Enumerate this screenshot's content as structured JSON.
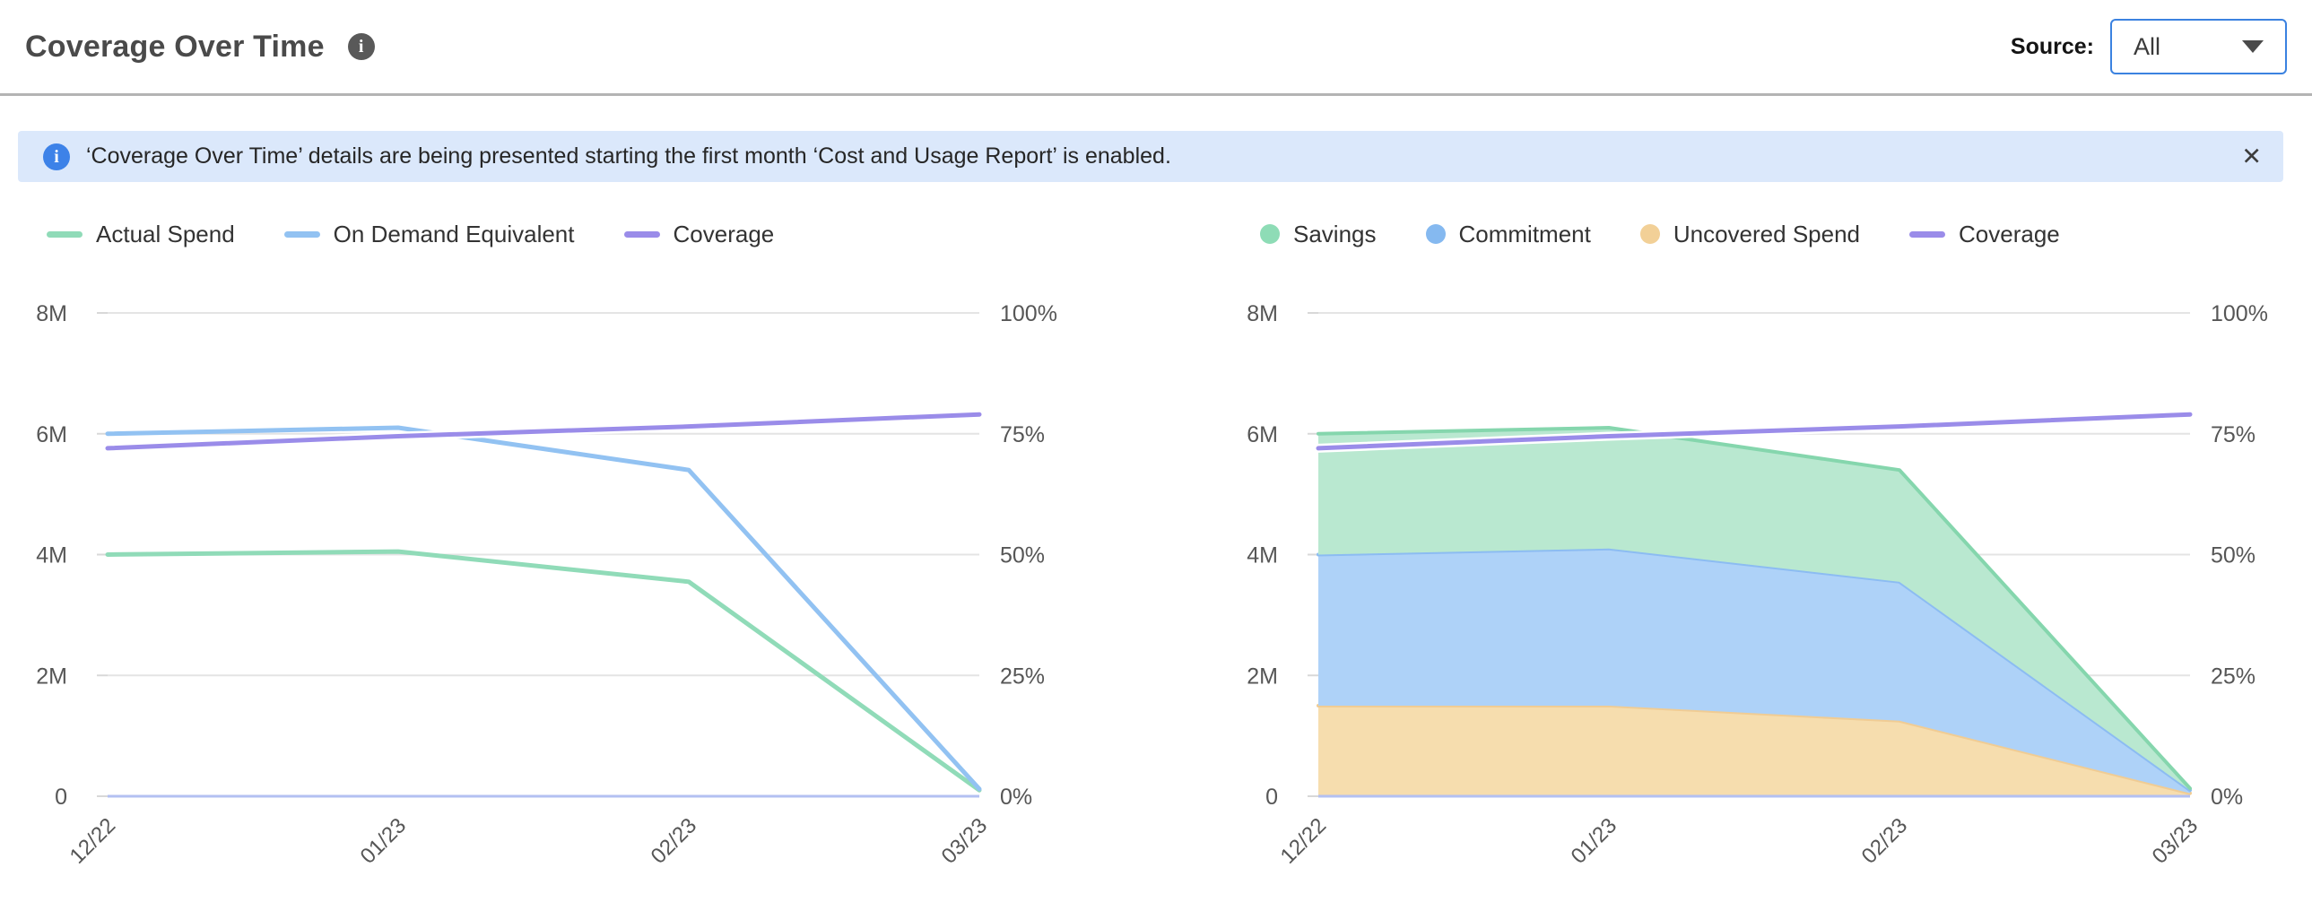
{
  "header": {
    "title": "Coverage Over Time",
    "info_icon": "i",
    "source_label": "Source:",
    "source_value": "All"
  },
  "banner": {
    "info_icon": "i",
    "text": "‘Coverage Over Time’ details are being presented starting the first month ‘Cost and Usage Report’ is enabled.",
    "close_icon": "✕"
  },
  "colors": {
    "actual_spend": "#90dbb8",
    "on_demand": "#92c2f2",
    "coverage": "#9a8ce9",
    "savings_dot": "#8edcb6",
    "commitment_dot": "#85b9f0",
    "uncovered_dot": "#f2d097",
    "grid": "#e4e4e4",
    "zero_axis": "#b3c0f2",
    "tick": "#d8d8d8",
    "axis_label": "#565656",
    "banner_bg": "#dbe8fb",
    "banner_icon_blue": "#3d82e8",
    "dropdown_border": "#3b82e0"
  },
  "chart_data": [
    {
      "type": "line",
      "title": "Coverage Over Time - spend lines",
      "x": [
        "12/22",
        "01/23",
        "02/23",
        "03/23"
      ],
      "legend": [
        {
          "label": "Actual Spend",
          "swatch": "line",
          "color": "#90dbb8"
        },
        {
          "label": "On Demand Equivalent",
          "swatch": "line",
          "color": "#92c2f2"
        },
        {
          "label": "Coverage",
          "swatch": "line",
          "color": "#9a8ce9"
        }
      ],
      "series": [
        {
          "name": "Actual Spend",
          "kind": "line",
          "axis": "left",
          "color": "#90dbb8",
          "values": [
            4.0,
            4.05,
            3.55,
            0.1
          ]
        },
        {
          "name": "On Demand Equivalent",
          "kind": "line",
          "axis": "left",
          "color": "#92c2f2",
          "values": [
            6.0,
            6.1,
            5.4,
            0.12
          ]
        },
        {
          "name": "Coverage",
          "kind": "line",
          "axis": "right",
          "color": "#9a8ce9",
          "halo": true,
          "values": [
            72,
            74.5,
            76.5,
            79
          ]
        }
      ],
      "left_axis": {
        "labels": [
          "8M",
          "6M",
          "4M",
          "2M",
          "0"
        ],
        "values": [
          8,
          6,
          4,
          2,
          0
        ],
        "max": 8,
        "unit": "M"
      },
      "right_axis": {
        "labels": [
          "100%",
          "75%",
          "50%",
          "25%",
          "0%"
        ],
        "values": [
          100,
          75,
          50,
          25,
          0
        ],
        "max": 100,
        "unit": "%"
      },
      "grid": true,
      "legend_position": "top"
    },
    {
      "type": "area",
      "title": "Coverage Over Time - stacked spend breakdown",
      "x": [
        "12/22",
        "01/23",
        "02/23",
        "03/23"
      ],
      "legend": [
        {
          "label": "Savings",
          "swatch": "dot",
          "color": "#8edcb6"
        },
        {
          "label": "Commitment",
          "swatch": "dot",
          "color": "#85b9f0"
        },
        {
          "label": "Uncovered Spend",
          "swatch": "dot",
          "color": "#f2d097"
        },
        {
          "label": "Coverage",
          "swatch": "line",
          "color": "#9a8ce9"
        }
      ],
      "series": [
        {
          "name": "Uncovered Spend",
          "kind": "area",
          "stack": true,
          "axis": "left",
          "fill": "#f6ddae",
          "edge": "#f0cc94",
          "values": [
            1.5,
            1.5,
            1.25,
            0.05
          ]
        },
        {
          "name": "Commitment",
          "kind": "area",
          "stack": true,
          "axis": "left",
          "fill": "#aed2f8",
          "edge": "#8cbcf2",
          "values": [
            2.5,
            2.6,
            2.3,
            0.05
          ]
        },
        {
          "name": "Savings",
          "kind": "area",
          "stack": true,
          "axis": "left",
          "fill": "#b9e8d0",
          "edge": "#85d6ad",
          "values": [
            2.0,
            2.0,
            1.85,
            0.03
          ]
        },
        {
          "name": "Coverage",
          "kind": "line",
          "axis": "right",
          "color": "#9a8ce9",
          "halo": true,
          "values": [
            72,
            74.5,
            76.5,
            79
          ]
        }
      ],
      "left_axis": {
        "labels": [
          "8M",
          "6M",
          "4M",
          "2M",
          "0"
        ],
        "values": [
          8,
          6,
          4,
          2,
          0
        ],
        "max": 8,
        "unit": "M"
      },
      "right_axis": {
        "labels": [
          "100%",
          "75%",
          "50%",
          "25%",
          "0%"
        ],
        "values": [
          100,
          75,
          50,
          25,
          0
        ],
        "max": 100,
        "unit": "%"
      },
      "grid": true,
      "legend_position": "top"
    }
  ]
}
